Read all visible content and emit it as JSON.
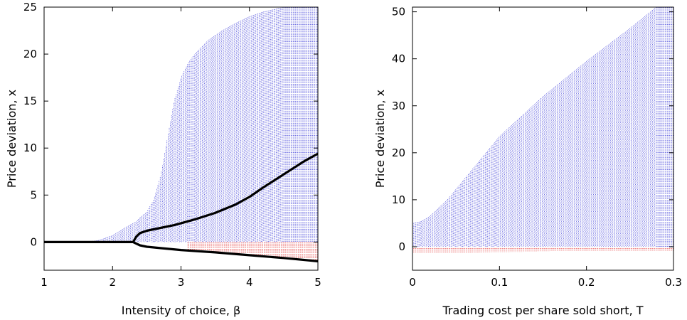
{
  "chart_data": [
    {
      "type": "scatter",
      "title": "",
      "xlabel": "Intensity of choice, β",
      "ylabel": "Price deviation, x",
      "xlim": [
        1,
        5
      ],
      "ylim": [
        -3,
        25
      ],
      "xticks": [
        1,
        2,
        3,
        4,
        5
      ],
      "yticks": [
        0,
        5,
        10,
        15,
        20,
        25
      ],
      "xtick_labels": [
        "1",
        "2",
        "3",
        "4",
        "5"
      ],
      "ytick_labels": [
        "0",
        "5",
        "10",
        "15",
        "20",
        "25"
      ],
      "grid": false,
      "series": [
        {
          "kind": "bifurcation-points-positive",
          "color": "#0000cc",
          "upper_envelope": {
            "x": [
              1.0,
              1.6,
              1.8,
              2.0,
              2.2,
              2.35,
              2.4,
              2.5,
              2.6,
              2.7,
              2.8,
              2.9,
              3.0,
              3.1,
              3.2,
              3.4,
              3.6,
              3.8,
              4.0,
              4.2,
              4.5,
              5.0
            ],
            "y": [
              0.0,
              0.0,
              0.2,
              0.7,
              1.6,
              2.2,
              2.6,
              3.2,
              4.5,
              7.0,
              11.0,
              15.0,
              17.5,
              19.0,
              20.0,
              21.5,
              22.5,
              23.3,
              24.0,
              24.5,
              25.0,
              25.0
            ]
          },
          "lower_envelope": {
            "x": [
              1.0,
              5.0
            ],
            "y": [
              0.0,
              0.0
            ]
          }
        },
        {
          "kind": "bifurcation-points-negative",
          "color": "#dd0000",
          "upper_envelope": {
            "x": [
              3.1,
              5.0
            ],
            "y": [
              0.0,
              0.0
            ]
          },
          "lower_envelope": {
            "x": [
              3.1,
              3.5,
              4.0,
              4.5,
              5.0
            ],
            "y": [
              -0.85,
              -1.05,
              -1.3,
              -1.6,
              -1.9
            ]
          }
        },
        {
          "kind": "mean-upper-curve",
          "color": "#000000",
          "x": [
            1.0,
            2.3,
            2.35,
            2.4,
            2.5,
            2.7,
            2.9,
            3.0,
            3.2,
            3.5,
            3.8,
            4.0,
            4.2,
            4.5,
            4.8,
            5.0
          ],
          "y": [
            0.0,
            0.0,
            0.6,
            0.95,
            1.2,
            1.5,
            1.8,
            2.0,
            2.4,
            3.1,
            4.0,
            4.8,
            5.8,
            7.2,
            8.6,
            9.4
          ]
        },
        {
          "kind": "mean-lower-curve",
          "color": "#000000",
          "x": [
            2.3,
            2.4,
            2.5,
            2.7,
            3.0,
            3.5,
            4.0,
            4.5,
            5.0
          ],
          "y": [
            0.0,
            -0.35,
            -0.5,
            -0.65,
            -0.85,
            -1.1,
            -1.4,
            -1.7,
            -2.05
          ]
        }
      ]
    },
    {
      "type": "scatter",
      "title": "",
      "xlabel": "Trading cost per share sold short, T",
      "ylabel": "Price deviation, x",
      "xlim": [
        0,
        0.3
      ],
      "ylim": [
        -5,
        51
      ],
      "xticks": [
        0,
        0.1,
        0.2,
        0.3
      ],
      "yticks": [
        0,
        10,
        20,
        30,
        40,
        50
      ],
      "xtick_labels": [
        "0",
        "0.1",
        "0.2",
        "0.3"
      ],
      "ytick_labels": [
        "0",
        "10",
        "20",
        "30",
        "40",
        "50"
      ],
      "grid": false,
      "series": [
        {
          "kind": "bifurcation-points-positive",
          "color": "#0000cc",
          "upper_envelope": {
            "x": [
              0.0,
              0.01,
              0.02,
              0.04,
              0.06,
              0.08,
              0.1,
              0.15,
              0.2,
              0.25,
              0.28,
              0.3
            ],
            "y": [
              5.0,
              5.4,
              6.5,
              10.0,
              14.5,
              19.0,
              23.5,
              32.0,
              39.5,
              46.5,
              51.0,
              51.0
            ]
          },
          "lower_envelope": {
            "x": [
              0.0,
              0.3
            ],
            "y": [
              0.0,
              0.0
            ]
          }
        },
        {
          "kind": "bifurcation-points-negative",
          "color": "#dd0000",
          "upper_envelope": {
            "x": [
              0.0,
              0.3
            ],
            "y": [
              -0.3,
              -0.3
            ]
          },
          "lower_envelope": {
            "x": [
              0.0,
              0.1,
              0.2,
              0.3
            ],
            "y": [
              -1.3,
              -1.1,
              -1.0,
              -0.9
            ]
          }
        }
      ]
    }
  ]
}
